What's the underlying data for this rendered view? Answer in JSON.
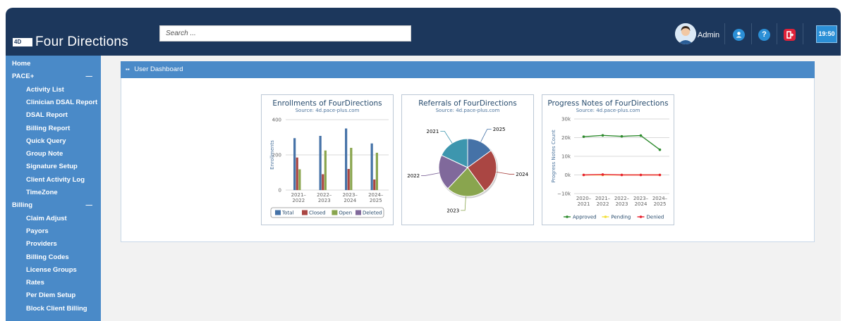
{
  "app": {
    "brand_mark": "4D",
    "brand_name": "Four Directions"
  },
  "header": {
    "search_placeholder": "Search ...",
    "user_name": "Admin",
    "time": "19:50",
    "colors": {
      "bar": "#1c375c",
      "user_icon": "#2b8fd6",
      "help_icon": "#2b8fd6",
      "logout_icon": "#e0223a"
    }
  },
  "sidebar": {
    "items": [
      {
        "label": "Home",
        "level": 0
      },
      {
        "label": "PACE+",
        "level": 0,
        "toggle": "—"
      },
      {
        "label": "Activity List",
        "level": 1
      },
      {
        "label": "Clinician DSAL Report",
        "level": 1
      },
      {
        "label": "DSAL Report",
        "level": 1
      },
      {
        "label": "Billing Report",
        "level": 1
      },
      {
        "label": "Quick Query",
        "level": 1
      },
      {
        "label": "Group Note",
        "level": 1
      },
      {
        "label": "Signature Setup",
        "level": 1
      },
      {
        "label": "Client Activity Log",
        "level": 1
      },
      {
        "label": "TimeZone",
        "level": 1
      },
      {
        "label": "Billing",
        "level": 0,
        "toggle": "—"
      },
      {
        "label": "Claim Adjust",
        "level": 1
      },
      {
        "label": "Payors",
        "level": 1
      },
      {
        "label": "Providers",
        "level": 1
      },
      {
        "label": "Billing Codes",
        "level": 1
      },
      {
        "label": "License Groups",
        "level": 1
      },
      {
        "label": "Rates",
        "level": 1
      },
      {
        "label": "Per Diem Setup",
        "level": 1
      },
      {
        "label": "Block Client Billing",
        "level": 1
      }
    ]
  },
  "main": {
    "panel_title": "User Dashboard"
  },
  "chart_data": [
    {
      "type": "bar",
      "title": "Enrollments of FourDirections",
      "subtitle": "Source: 4d.pace-plus.com",
      "xlabel": "",
      "ylabel": "Enrollments",
      "ylim": [
        0,
        400
      ],
      "yticks": [
        "0",
        "200",
        "400"
      ],
      "categories": [
        [
          "2021–",
          "2022"
        ],
        [
          "2022–",
          "2023"
        ],
        [
          "2023–",
          "2024"
        ],
        [
          "2024–",
          "2025"
        ]
      ],
      "series": [
        {
          "name": "Total",
          "color": "#4572a7",
          "values": [
            295,
            308,
            350,
            265
          ]
        },
        {
          "name": "Closed",
          "color": "#aa4643",
          "values": [
            185,
            90,
            120,
            60
          ]
        },
        {
          "name": "Open",
          "color": "#89a54e",
          "values": [
            118,
            225,
            240,
            212
          ]
        },
        {
          "name": "Deleted",
          "color": "#80699b",
          "values": [
            0,
            0,
            0,
            0
          ]
        }
      ]
    },
    {
      "type": "pie",
      "title": "Referrals of FourDirections",
      "subtitle": "Source: 4d.pace-plus.com",
      "slices": [
        {
          "label": "2025",
          "value": 15,
          "color": "#4572a7"
        },
        {
          "label": "2024",
          "value": 25,
          "color": "#aa4643"
        },
        {
          "label": "2023",
          "value": 22,
          "color": "#89a54e"
        },
        {
          "label": "2022",
          "value": 20,
          "color": "#80699b"
        },
        {
          "label": "2021",
          "value": 18,
          "color": "#3d96ae"
        }
      ]
    },
    {
      "type": "line",
      "title": "Progress Notes of FourDirections",
      "subtitle": "Source: 4d.pace-plus.com",
      "xlabel": "",
      "ylabel": "Progress Notes Count",
      "ylim": [
        -10000,
        30000
      ],
      "yticks": [
        "−10k",
        "0k",
        "10k",
        "20k",
        "30k"
      ],
      "categories": [
        [
          "2020–",
          "2021"
        ],
        [
          "2021–",
          "2022"
        ],
        [
          "2022–",
          "2023"
        ],
        [
          "2023–",
          "2024"
        ],
        [
          "2024–",
          "2025"
        ]
      ],
      "series": [
        {
          "name": "Approved",
          "color": "#2e8b2e",
          "values": [
            20500,
            21200,
            20700,
            21100,
            13500
          ]
        },
        {
          "name": "Pending",
          "color": "#f2e03a",
          "values": [
            0,
            0,
            0,
            0,
            0
          ]
        },
        {
          "name": "Denied",
          "color": "#e8212f",
          "values": [
            0,
            200,
            0,
            0,
            0
          ]
        }
      ]
    }
  ]
}
